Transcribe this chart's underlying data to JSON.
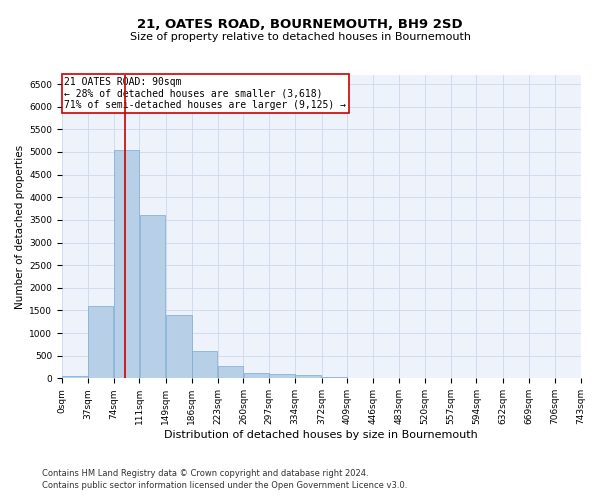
{
  "title": "21, OATES ROAD, BOURNEMOUTH, BH9 2SD",
  "subtitle": "Size of property relative to detached houses in Bournemouth",
  "xlabel": "Distribution of detached houses by size in Bournemouth",
  "ylabel": "Number of detached properties",
  "footer_line1": "Contains HM Land Registry data © Crown copyright and database right 2024.",
  "footer_line2": "Contains public sector information licensed under the Open Government Licence v3.0.",
  "annotation_title": "21 OATES ROAD: 90sqm",
  "annotation_line1": "← 28% of detached houses are smaller (3,618)",
  "annotation_line2": "71% of semi-detached houses are larger (9,125) →",
  "property_size_sqm": 90,
  "bar_color": "#b8cfe8",
  "bar_edge_color": "#7aaad0",
  "red_line_color": "#cc0000",
  "annotation_box_color": "#cc0000",
  "grid_color": "#ccd8ec",
  "background_color": "#eef2fb",
  "bin_edges": [
    0,
    37,
    74,
    111,
    149,
    186,
    223,
    260,
    297,
    334,
    372,
    409,
    446,
    483,
    520,
    557,
    594,
    632,
    669,
    706,
    743
  ],
  "bin_labels": [
    "0sqm",
    "37sqm",
    "74sqm",
    "111sqm",
    "149sqm",
    "186sqm",
    "223sqm",
    "260sqm",
    "297sqm",
    "334sqm",
    "372sqm",
    "409sqm",
    "446sqm",
    "483sqm",
    "520sqm",
    "557sqm",
    "594sqm",
    "632sqm",
    "669sqm",
    "706sqm",
    "743sqm"
  ],
  "bar_heights": [
    50,
    1600,
    5050,
    3600,
    1400,
    600,
    280,
    120,
    100,
    70,
    30,
    10,
    5,
    2,
    1,
    0,
    0,
    0,
    0,
    0
  ],
  "ylim": [
    0,
    6700
  ],
  "yticks": [
    0,
    500,
    1000,
    1500,
    2000,
    2500,
    3000,
    3500,
    4000,
    4500,
    5000,
    5500,
    6000,
    6500
  ],
  "title_fontsize": 9.5,
  "subtitle_fontsize": 8.0,
  "xlabel_fontsize": 8.0,
  "ylabel_fontsize": 7.5,
  "tick_fontsize": 6.5,
  "annotation_fontsize": 7.0,
  "footer_fontsize": 6.0
}
